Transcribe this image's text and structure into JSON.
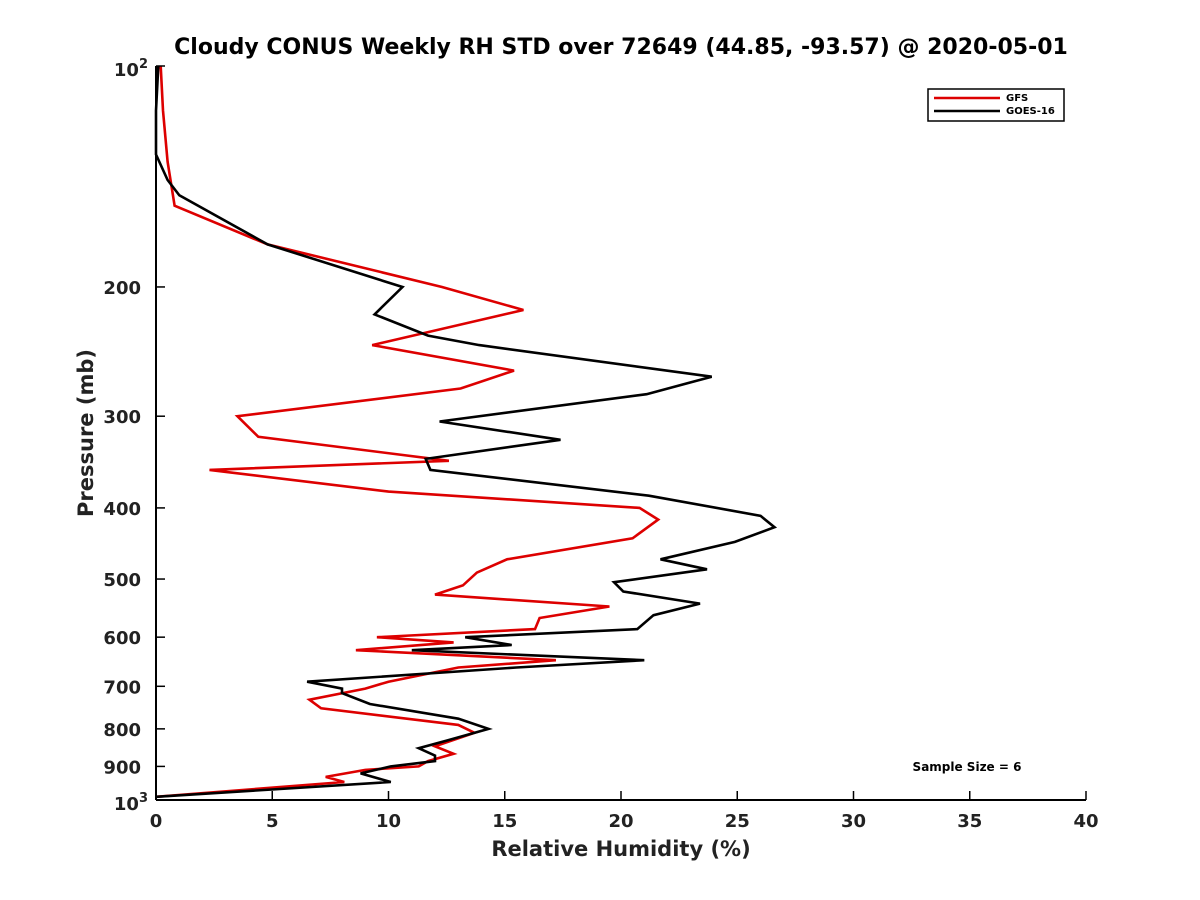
{
  "chart_data": {
    "type": "line",
    "title": "Cloudy CONUS Weekly RH STD over 72649 (44.85, -93.57) @ 2020-05-01",
    "xlabel": "Relative Humidity (%)",
    "ylabel": "Pressure (mb)",
    "xlim": [
      0,
      40
    ],
    "ylim": [
      1000,
      100
    ],
    "yscale": "log",
    "y_reversed": true,
    "x_ticks": [
      "0",
      "5",
      "10",
      "15",
      "20",
      "25",
      "30",
      "35",
      "40"
    ],
    "y_ticks": [
      {
        "value": 100,
        "base": "10",
        "exp": "2"
      },
      {
        "value": 200,
        "label": "200"
      },
      {
        "value": 300,
        "label": "300"
      },
      {
        "value": 400,
        "label": "400"
      },
      {
        "value": 500,
        "label": "500"
      },
      {
        "value": 600,
        "label": "600"
      },
      {
        "value": 700,
        "label": "700"
      },
      {
        "value": 800,
        "label": "800"
      },
      {
        "value": 900,
        "label": "900"
      },
      {
        "value": 1000,
        "base": "10",
        "exp": "3"
      }
    ],
    "legend_position": "top-right",
    "annotation": "Sample Size = 6",
    "series": [
      {
        "name": "GFS",
        "color": "#dd0000",
        "points": [
          [
            0.2,
            100
          ],
          [
            0.3,
            115
          ],
          [
            0.5,
            135
          ],
          [
            0.8,
            155
          ],
          [
            4.8,
            175
          ],
          [
            12.3,
            200
          ],
          [
            15.8,
            215
          ],
          [
            9.3,
            240
          ],
          [
            15.4,
            260
          ],
          [
            13.1,
            275
          ],
          [
            3.5,
            300
          ],
          [
            4.4,
            320
          ],
          [
            12.6,
            345
          ],
          [
            2.3,
            355
          ],
          [
            10.0,
            380
          ],
          [
            20.8,
            400
          ],
          [
            21.6,
            415
          ],
          [
            20.5,
            440
          ],
          [
            15.1,
            470
          ],
          [
            13.8,
            490
          ],
          [
            13.2,
            510
          ],
          [
            12.0,
            525
          ],
          [
            19.5,
            545
          ],
          [
            16.5,
            565
          ],
          [
            16.3,
            585
          ],
          [
            9.5,
            600
          ],
          [
            12.8,
            610
          ],
          [
            8.6,
            625
          ],
          [
            17.2,
            645
          ],
          [
            13.0,
            660
          ],
          [
            10.0,
            690
          ],
          [
            9.0,
            705
          ],
          [
            6.6,
            730
          ],
          [
            7.1,
            750
          ],
          [
            13.0,
            790
          ],
          [
            13.7,
            810
          ],
          [
            12.0,
            845
          ],
          [
            12.8,
            865
          ],
          [
            11.7,
            885
          ],
          [
            11.3,
            900
          ],
          [
            9.0,
            910
          ],
          [
            7.3,
            930
          ],
          [
            8.1,
            945
          ],
          [
            0.0,
            990
          ]
        ]
      },
      {
        "name": "GOES-16",
        "color": "#000000",
        "points": [
          [
            0.1,
            100
          ],
          [
            0.0,
            115
          ],
          [
            0.0,
            132
          ],
          [
            0.5,
            143
          ],
          [
            1.0,
            150
          ],
          [
            4.8,
            175
          ],
          [
            10.6,
            200
          ],
          [
            9.4,
            218
          ],
          [
            11.7,
            233
          ],
          [
            13.9,
            240
          ],
          [
            23.9,
            265
          ],
          [
            21.1,
            280
          ],
          [
            12.2,
            305
          ],
          [
            17.4,
            323
          ],
          [
            11.6,
            343
          ],
          [
            11.8,
            355
          ],
          [
            21.2,
            385
          ],
          [
            26.0,
            410
          ],
          [
            26.6,
            425
          ],
          [
            24.9,
            445
          ],
          [
            21.7,
            470
          ],
          [
            23.7,
            485
          ],
          [
            19.7,
            505
          ],
          [
            20.1,
            520
          ],
          [
            23.4,
            540
          ],
          [
            21.4,
            560
          ],
          [
            20.7,
            585
          ],
          [
            13.3,
            600
          ],
          [
            15.3,
            615
          ],
          [
            11.0,
            625
          ],
          [
            21.0,
            645
          ],
          [
            15.5,
            660
          ],
          [
            6.5,
            690
          ],
          [
            8.0,
            705
          ],
          [
            8.0,
            715
          ],
          [
            9.2,
            740
          ],
          [
            13.0,
            775
          ],
          [
            14.3,
            800
          ],
          [
            12.5,
            830
          ],
          [
            11.3,
            850
          ],
          [
            12.0,
            870
          ],
          [
            12.0,
            885
          ],
          [
            10.1,
            900
          ],
          [
            8.8,
            920
          ],
          [
            10.1,
            945
          ],
          [
            0.0,
            990
          ]
        ]
      }
    ]
  }
}
